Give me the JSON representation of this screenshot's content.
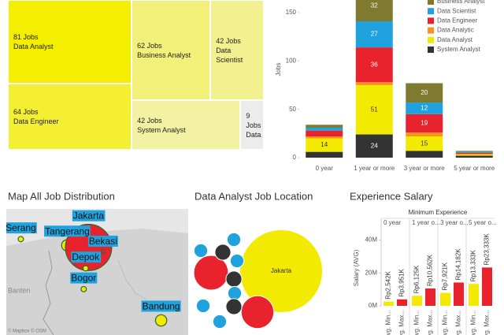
{
  "chart_data": [
    {
      "type": "treemap",
      "categories": [
        "Data Analyst",
        "Data Engineer",
        "Business Analyst",
        "Data Scientist",
        "System Analyst",
        "Data"
      ],
      "values": [
        81,
        64,
        62,
        42,
        42,
        9
      ],
      "value_labels": [
        "81 Jobs",
        "64 Jobs",
        "62 Jobs",
        "42 Jobs",
        "42 Jobs",
        "9 Jobs"
      ],
      "colors": [
        "#f4ef00",
        "#f4ef33",
        "#f3f07a",
        "#f3f08f",
        "#f3f2a2",
        "#ececec"
      ]
    },
    {
      "type": "stacked-bar",
      "categories": [
        "0 year",
        "1 year or more",
        "3 year or more",
        "5 year or more"
      ],
      "y_label": "Jobs",
      "ylim": [
        0,
        163
      ],
      "yticks": [
        0,
        50,
        100,
        150
      ],
      "legend": "top-right",
      "series": [
        {
          "name": "Business Analyst",
          "color": "#7f7a30",
          "values": [
            3,
            32,
            20,
            1
          ]
        },
        {
          "name": "Data Scientist",
          "color": "#1fa2dd",
          "values": [
            3,
            27,
            12,
            1
          ]
        },
        {
          "name": "Data Engineer",
          "color": "#e8232d",
          "values": [
            6,
            36,
            19,
            1
          ]
        },
        {
          "name": "Data Analytic",
          "color": "#f7931e",
          "values": [
            2,
            3,
            4,
            1
          ]
        },
        {
          "name": "Data Analyst",
          "color": "#f2ea00",
          "values": [
            14,
            51,
            15,
            1
          ]
        },
        {
          "name": "System Analyst",
          "color": "#333333",
          "values": [
            6,
            24,
            7,
            2
          ]
        }
      ]
    },
    {
      "type": "bubble-map",
      "title": "Map All Job Distribution",
      "names": [
        "Serang",
        "Tangerang",
        "Jakarta",
        "Bekasi",
        "Depok",
        "Bogor",
        "Bandung"
      ],
      "x": [
        106.15,
        106.63,
        106.85,
        107.0,
        106.82,
        106.8,
        107.6
      ],
      "y": [
        -6.12,
        -6.18,
        -6.2,
        -6.24,
        -6.4,
        -6.6,
        -6.9
      ],
      "sizes": [
        2,
        9,
        150,
        1,
        2,
        2,
        9
      ],
      "colors": [
        "#f2ea00",
        "#f2ea00",
        "#e8232d",
        "#e8232d",
        "#f2ea00",
        "#f2ea00",
        "#f2ea00"
      ],
      "xlim": [
        106.0,
        107.88
      ],
      "ylim": [
        -7.04,
        -5.83
      ],
      "region_label": "Banten",
      "attribution": "© Mapbox © OSM"
    },
    {
      "type": "packed-bubble",
      "title": "Data Analyst Job Location",
      "categories": [
        "Jakarta",
        null,
        null,
        null,
        null,
        null,
        null,
        null,
        null,
        null,
        null,
        null
      ],
      "values": [
        100,
        18,
        16,
        4,
        3,
        3,
        4,
        3,
        4,
        3,
        3,
        3
      ],
      "colors": [
        "#f2ea00",
        "#e8232d",
        "#e8232d",
        "#333333",
        "#1fa2dd",
        "#1fa2dd",
        "#333333",
        "#1fa2dd",
        "#333333",
        "#1fa2dd",
        "#1fa2dd",
        "#1fa2dd"
      ]
    },
    {
      "type": "grouped-bar",
      "title": "Experience Salary",
      "header": "Minimum Experience",
      "categories": [
        "0 year",
        "1 year o...",
        "3 year o...",
        "5 year o..."
      ],
      "y_label": "Salary (AVG)",
      "ylim": [
        0,
        47000000
      ],
      "yticks": [
        {
          "value": 0,
          "label": "0M"
        },
        {
          "value": 20000000,
          "label": "20M"
        },
        {
          "value": 40000000,
          "label": "40M"
        }
      ],
      "series": [
        {
          "name": "Avg. Min...",
          "color": "#f2ea00",
          "values": [
            2542000,
            6125000,
            7921000,
            13333000
          ],
          "value_labels": [
            "Rp2,542K",
            "Rp6,125K",
            "Rp7,921K",
            "Rp13,333K"
          ]
        },
        {
          "name": "Avg. Max...",
          "color": "#e8232d",
          "values": [
            3951000,
            10562000,
            14182000,
            23333000
          ],
          "value_labels": [
            "Rp3,951K",
            "Rp10,562K",
            "Rp14,182K",
            "Rp23,333K"
          ]
        }
      ]
    }
  ]
}
